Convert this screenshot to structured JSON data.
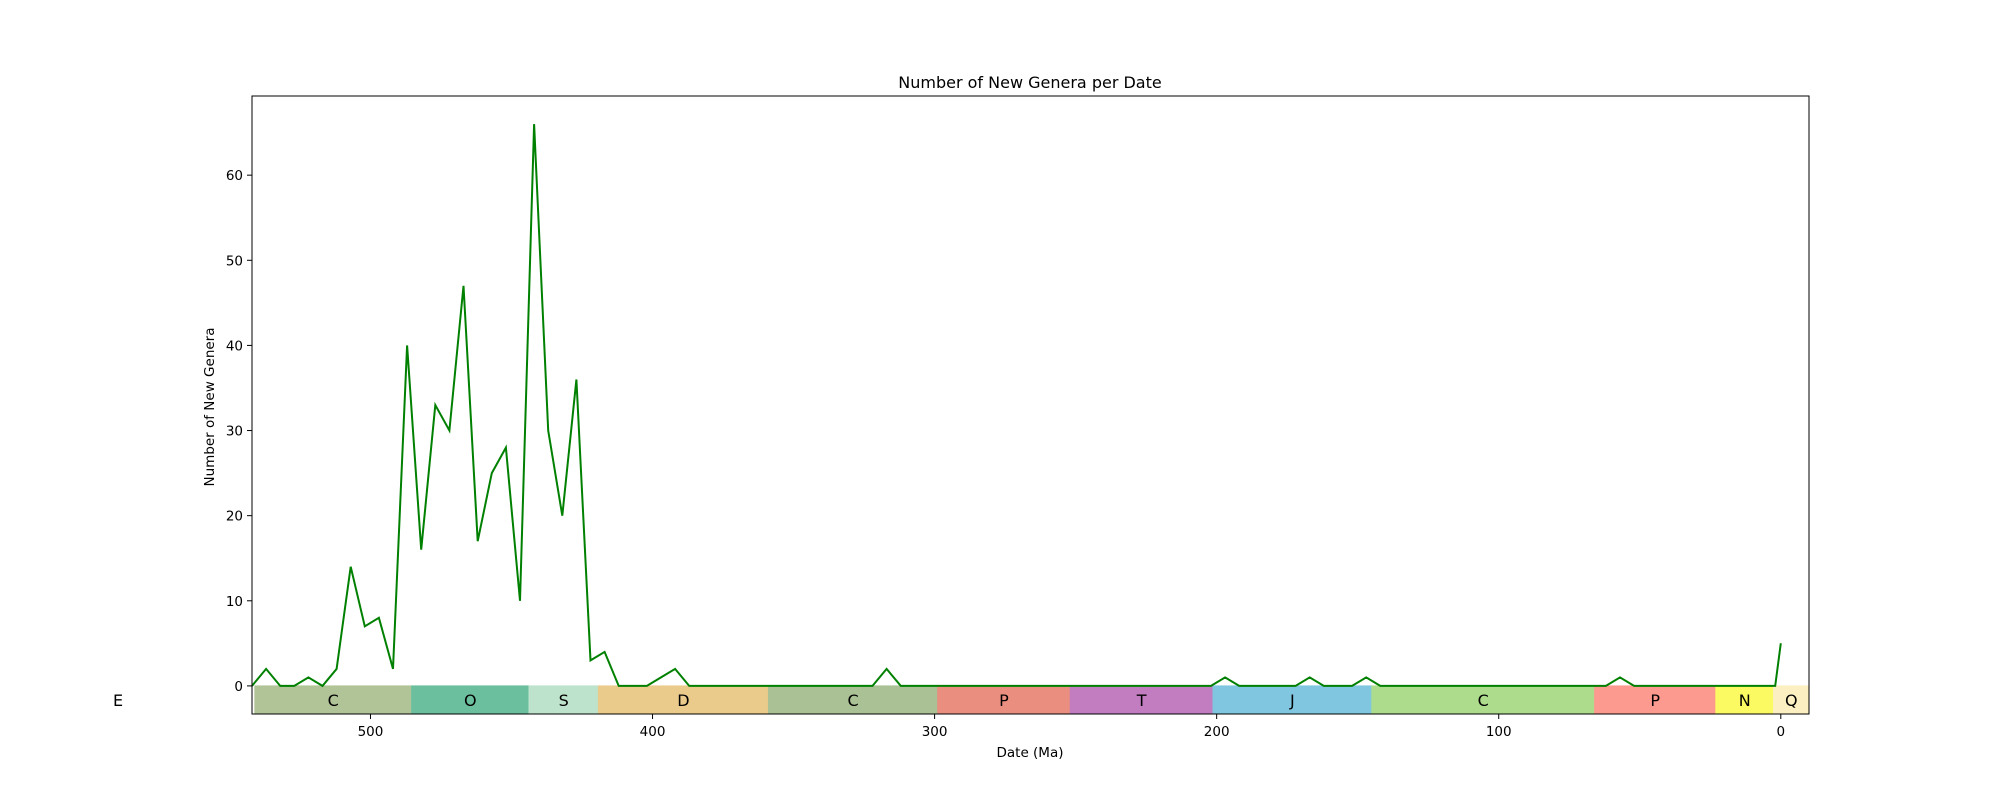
{
  "chart_data": {
    "type": "line",
    "title": "Number of New Genera per Date",
    "xlabel": "Date (Ma)",
    "ylabel": "Number of New Genera",
    "xlim": [
      542,
      -10
    ],
    "ylim": [
      -3.3,
      69.3
    ],
    "x_ticks": [
      500,
      400,
      300,
      200,
      100,
      0
    ],
    "y_ticks": [
      0,
      10,
      20,
      30,
      40,
      50,
      60
    ],
    "grid": false,
    "series": [
      {
        "color": "#008000",
        "x": [
          542,
          537,
          532,
          527,
          522,
          517,
          512,
          507,
          502,
          497,
          492,
          487,
          482,
          477,
          472,
          467,
          462,
          457,
          452,
          447,
          442,
          437,
          432,
          427,
          422,
          417,
          412,
          407,
          402,
          397,
          392,
          387,
          382,
          377,
          372,
          367,
          362,
          357,
          352,
          347,
          342,
          337,
          332,
          327,
          322,
          317,
          312,
          307,
          302,
          297,
          292,
          287,
          282,
          277,
          272,
          267,
          262,
          257,
          252,
          247,
          242,
          237,
          232,
          227,
          222,
          217,
          212,
          207,
          202,
          197,
          192,
          187,
          182,
          177,
          172,
          167,
          162,
          157,
          152,
          147,
          142,
          137,
          132,
          127,
          122,
          117,
          112,
          107,
          102,
          97,
          92,
          87,
          82,
          77,
          72,
          67,
          62,
          57,
          52,
          47,
          42,
          37,
          32,
          27,
          22,
          17,
          12,
          7,
          2,
          0
        ],
        "values": [
          0,
          2,
          0,
          0,
          1,
          0,
          2,
          14,
          7,
          8,
          2,
          40,
          16,
          33,
          30,
          47,
          17,
          25,
          28,
          10,
          66,
          30,
          20,
          36,
          3,
          4,
          0,
          0,
          0,
          1,
          2,
          0,
          0,
          0,
          0,
          0,
          0,
          0,
          0,
          0,
          0,
          0,
          0,
          0,
          0,
          2,
          0,
          0,
          0,
          0,
          0,
          0,
          0,
          0,
          0,
          0,
          0,
          0,
          0,
          0,
          0,
          0,
          0,
          0,
          0,
          0,
          0,
          0,
          0,
          1,
          0,
          0,
          0,
          0,
          0,
          1,
          0,
          0,
          0,
          1,
          0,
          0,
          0,
          0,
          0,
          0,
          0,
          0,
          0,
          0,
          0,
          0,
          0,
          0,
          0,
          0,
          0,
          1,
          0,
          0,
          0,
          0,
          0,
          0,
          0,
          0,
          0,
          0,
          0,
          5
        ]
      }
    ],
    "periods": [
      {
        "label": "E",
        "start": 600,
        "end": 541,
        "color": "#f2f2f2"
      },
      {
        "label": "C",
        "start": 541,
        "end": 485.4,
        "color": "#b1c497"
      },
      {
        "label": "O",
        "start": 485.4,
        "end": 443.8,
        "color": "#6bbf9f"
      },
      {
        "label": "S",
        "start": 443.8,
        "end": 419.2,
        "color": "#bde3cc"
      },
      {
        "label": "D",
        "start": 419.2,
        "end": 358.9,
        "color": "#ebcb8b"
      },
      {
        "label": "C",
        "start": 358.9,
        "end": 298.9,
        "color": "#a9c195"
      },
      {
        "label": "P",
        "start": 298.9,
        "end": 251.9,
        "color": "#ea8f7f"
      },
      {
        "label": "T",
        "start": 251.9,
        "end": 201.3,
        "color": "#c17dbf"
      },
      {
        "label": "J",
        "start": 201.3,
        "end": 145,
        "color": "#80c6e0"
      },
      {
        "label": "C",
        "start": 145,
        "end": 66,
        "color": "#acdc8c"
      },
      {
        "label": "P",
        "start": 66,
        "end": 23.03,
        "color": "#fd9a8f"
      },
      {
        "label": "N",
        "start": 23.03,
        "end": 2.58,
        "color": "#fcfa62"
      },
      {
        "label": "Q",
        "start": 2.58,
        "end": -10,
        "color": "#fcf0c2"
      }
    ]
  }
}
